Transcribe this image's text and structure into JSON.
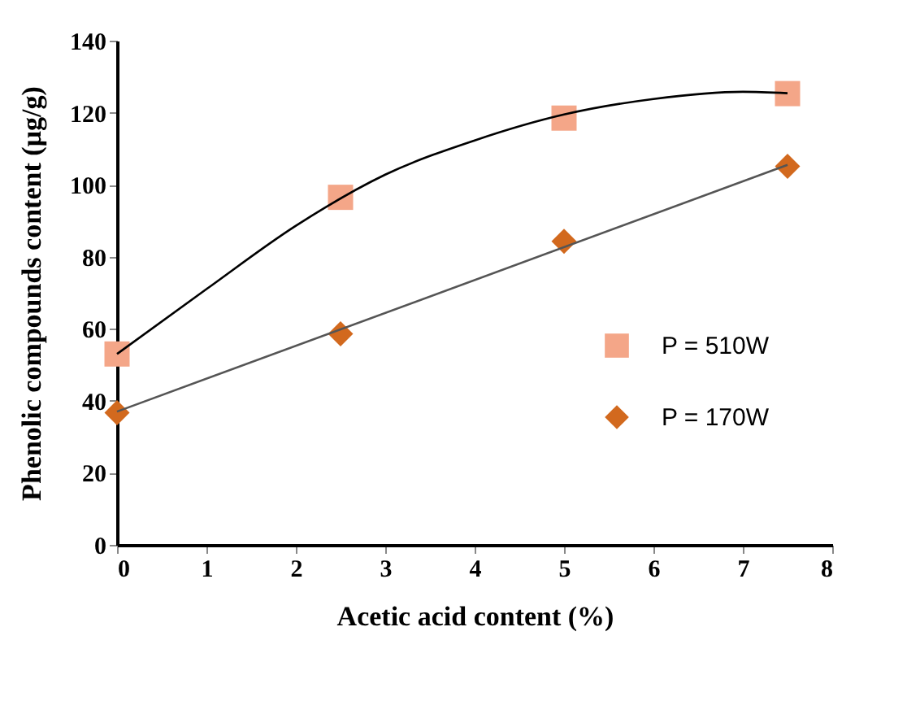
{
  "chart_data": {
    "type": "scatter",
    "xlabel": "Acetic acid content (%)",
    "ylabel": "Phenolic compounds content (µg/g)",
    "x": [
      0,
      2.5,
      5,
      7.5
    ],
    "series": [
      {
        "name": "P = 510W",
        "color": "#f4a688",
        "marker": "square",
        "values": [
          53,
          96.5,
          118.5,
          125.3
        ]
      },
      {
        "name": "P = 170W",
        "color": "#d2691e",
        "marker": "diamond",
        "values": [
          36.7,
          58.6,
          84.3,
          105.1
        ]
      },
      {
        "type": "line",
        "color": "#000000",
        "x": [
          0,
          1,
          2,
          3,
          4,
          5,
          6,
          7,
          7.5
        ],
        "values": [
          53,
          71,
          88.6,
          102.8,
          112.3,
          119.5,
          123.8,
          125.8,
          125.4
        ]
      },
      {
        "type": "line",
        "color": "#555555",
        "x": [
          0,
          7.5
        ],
        "values": [
          37,
          105.5
        ]
      }
    ],
    "xlim": [
      0,
      8
    ],
    "xticks": [
      0,
      1,
      2,
      3,
      4,
      5,
      6,
      7,
      8
    ],
    "ylim": [
      0,
      140
    ],
    "yticks": [
      0,
      20,
      40,
      60,
      80,
      100,
      120,
      140
    ],
    "grid": false,
    "legend": "right"
  }
}
